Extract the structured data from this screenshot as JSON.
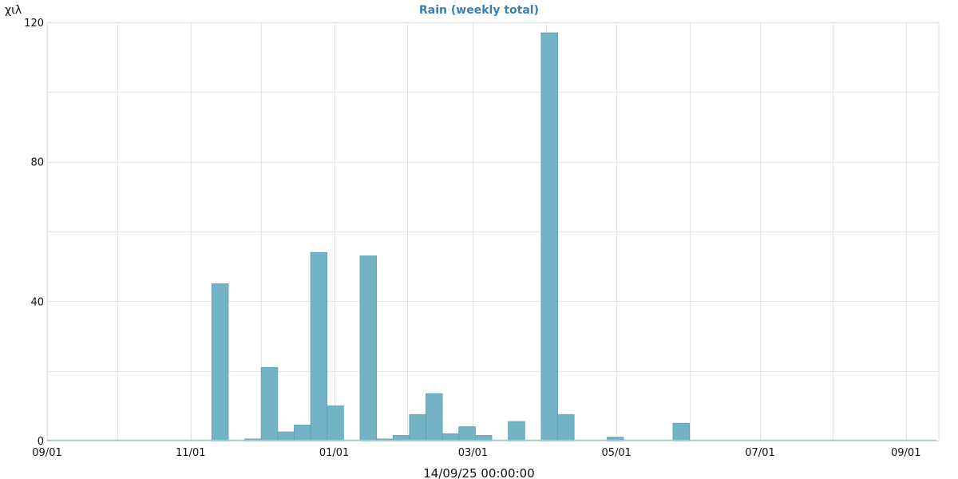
{
  "chart_data": {
    "type": "bar",
    "title": "Rain (weekly total)",
    "ylabel": "χιλ",
    "xlabel": "14/09/25 00:00:00",
    "ylim": [
      0,
      120
    ],
    "yticks": [
      "0",
      "40",
      "80",
      "120"
    ],
    "xlim": [
      "2024-09-01",
      "2025-09-15"
    ],
    "xticks": [
      {
        "date": "2024-09-01",
        "label": "09/01"
      },
      {
        "date": "2024-11-01",
        "label": "11/01"
      },
      {
        "date": "2025-01-01",
        "label": "01/01"
      },
      {
        "date": "2025-03-01",
        "label": "03/01"
      },
      {
        "date": "2025-05-01",
        "label": "05/01"
      },
      {
        "date": "2025-07-01",
        "label": "07/01"
      },
      {
        "date": "2025-09-01",
        "label": "09/01"
      }
    ],
    "bar_color": "#73b3c6",
    "bar_edge_color": "#5e9fb3",
    "baseline_color": "#9cc8d6",
    "series": [
      {
        "values": [
          {
            "week_start": "2024-11-10",
            "value": 45
          },
          {
            "week_start": "2024-11-24",
            "value": 0.5
          },
          {
            "week_start": "2024-12-01",
            "value": 21
          },
          {
            "week_start": "2024-12-08",
            "value": 2.5
          },
          {
            "week_start": "2024-12-15",
            "value": 4.5
          },
          {
            "week_start": "2024-12-22",
            "value": 54
          },
          {
            "week_start": "2024-12-29",
            "value": 10
          },
          {
            "week_start": "2025-01-12",
            "value": 53
          },
          {
            "week_start": "2025-01-19",
            "value": 0.5
          },
          {
            "week_start": "2025-01-26",
            "value": 1.5
          },
          {
            "week_start": "2025-02-02",
            "value": 7.5
          },
          {
            "week_start": "2025-02-09",
            "value": 13.5
          },
          {
            "week_start": "2025-02-16",
            "value": 2
          },
          {
            "week_start": "2025-02-23",
            "value": 4
          },
          {
            "week_start": "2025-03-02",
            "value": 1.5
          },
          {
            "week_start": "2025-03-16",
            "value": 5.5
          },
          {
            "week_start": "2025-03-30",
            "value": 117
          },
          {
            "week_start": "2025-04-06",
            "value": 7.5
          },
          {
            "week_start": "2025-04-27",
            "value": 1
          },
          {
            "week_start": "2025-05-25",
            "value": 5
          }
        ]
      }
    ]
  }
}
